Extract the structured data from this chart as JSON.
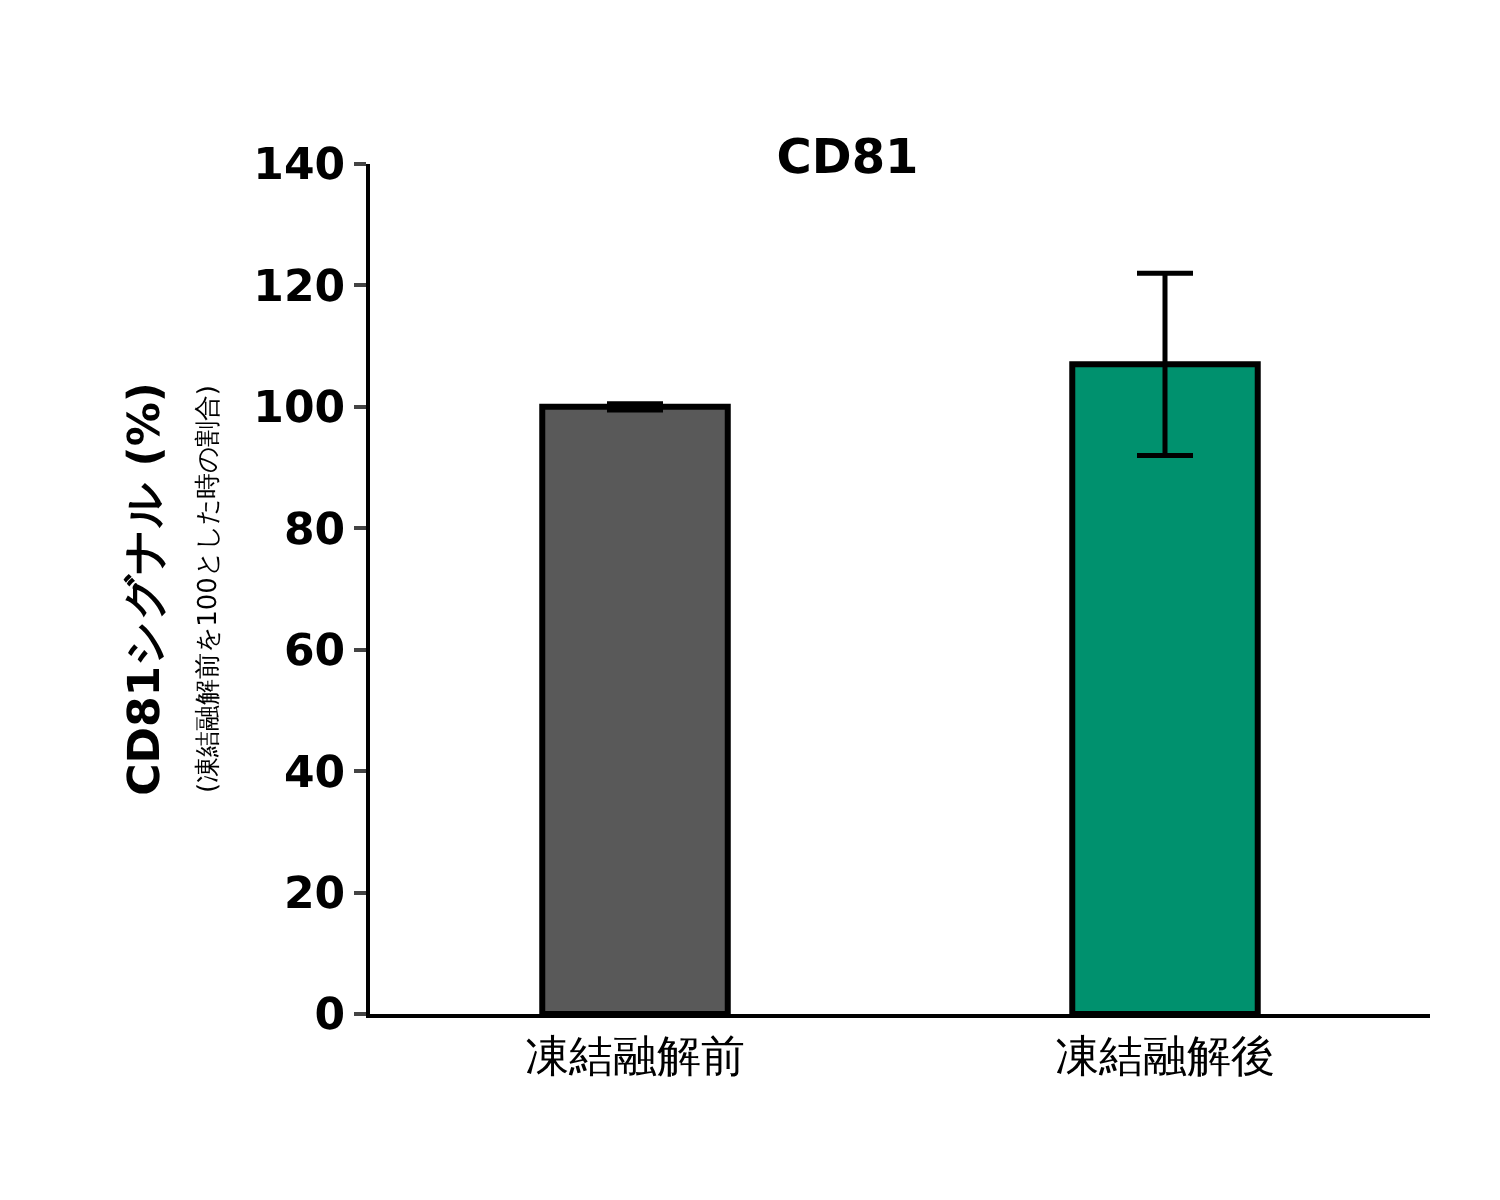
{
  "chart_data": {
    "type": "bar",
    "title": "CD81",
    "ylabel": "CD81シグナル (%)\n(凍結融解前を100とした時の割合)",
    "categories": [
      "凍結融解前",
      "凍結融解後"
    ],
    "values": [
      100,
      107
    ],
    "colors": [
      "#595959",
      "#00916e"
    ],
    "errors": [
      0.5,
      15
    ],
    "ylim": [
      0,
      140
    ],
    "yticks": [
      0,
      20,
      40,
      60,
      80,
      100,
      120,
      140
    ]
  }
}
